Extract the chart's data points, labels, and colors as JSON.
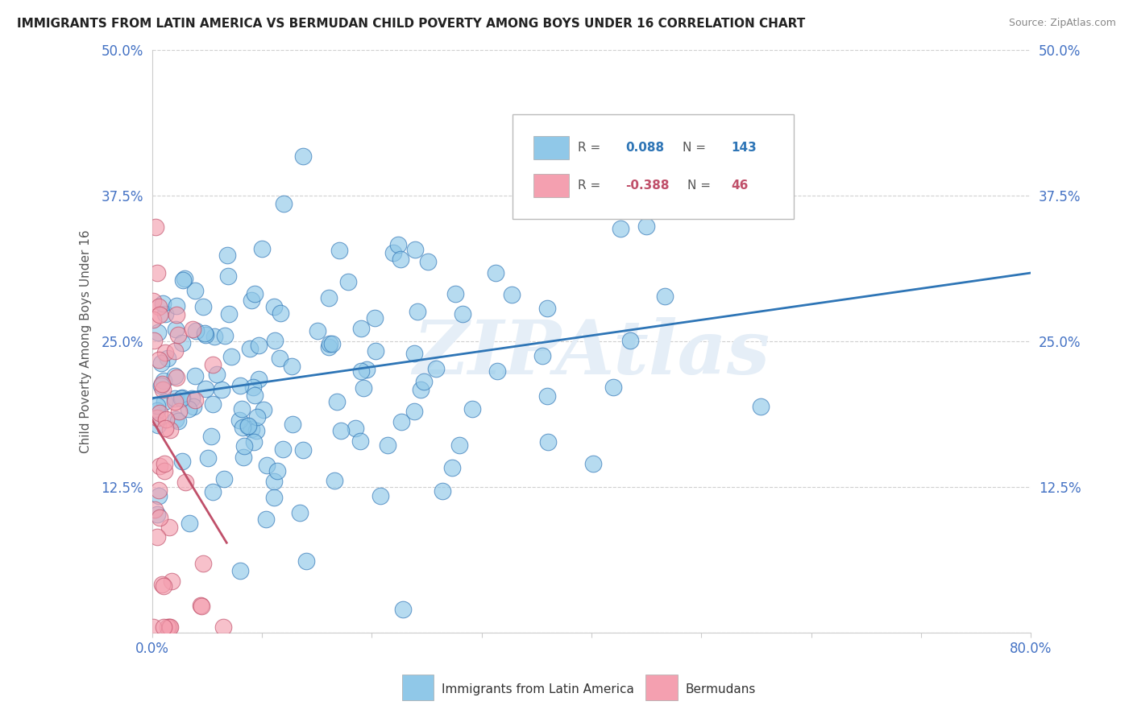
{
  "title": "IMMIGRANTS FROM LATIN AMERICA VS BERMUDAN CHILD POVERTY AMONG BOYS UNDER 16 CORRELATION CHART",
  "source": "Source: ZipAtlas.com",
  "ylabel": "Child Poverty Among Boys Under 16",
  "xlim": [
    0,
    0.8
  ],
  "ylim": [
    0,
    0.5
  ],
  "blue_R": 0.088,
  "blue_N": 143,
  "pink_R": -0.388,
  "pink_N": 46,
  "blue_color": "#90C8E8",
  "pink_color": "#F4A0B0",
  "blue_line_color": "#2E75B6",
  "pink_line_color": "#C0506A",
  "legend_label_blue": "Immigrants from Latin America",
  "legend_label_pink": "Bermudans",
  "watermark": "ZIPAtlas",
  "background_color": "#ffffff",
  "grid_color": "#d0d0d0",
  "title_color": "#222222",
  "source_color": "#888888",
  "tick_color": "#4472C4",
  "right_tick_color": "#4472C4"
}
